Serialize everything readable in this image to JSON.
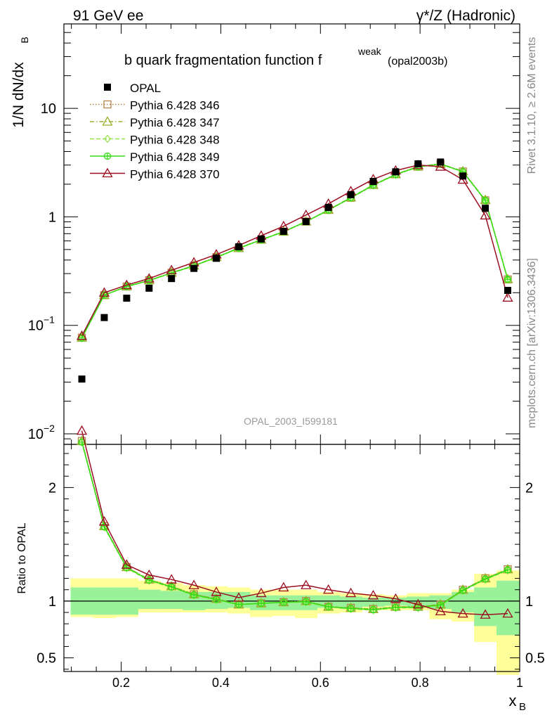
{
  "header": {
    "left": "91 GeV ee",
    "right": "γ*/Z (Hadronic)"
  },
  "side_labels": {
    "rivet": "Rivet 3.1.10, ≥ 2.6M events",
    "mcplots": "mcplots.cern.ch [arXiv:1306.3436]"
  },
  "chart_data": {
    "type": "scatter",
    "title_main": "b quark fragmentation function f",
    "title_sup": "weak",
    "title_sub": "(opal2003b)",
    "watermark": "OPAL_2003_I599181",
    "ylabel_main": "1/N dN/dx",
    "ylabel_sub": "B",
    "xlabel_main": "x",
    "xlabel_sub": "B",
    "ratio_ylabel": "Ratio to OPAL",
    "x_range": [
      0.085,
      1.0
    ],
    "y_range": [
      0.008,
      60
    ],
    "y_scale": "log",
    "ratio_range": [
      0.38,
      2.38
    ],
    "x_ticks": [
      {
        "v": 0.2,
        "label": "0.2"
      },
      {
        "v": 0.4,
        "label": "0.4"
      },
      {
        "v": 0.6,
        "label": "0.6"
      },
      {
        "v": 0.8,
        "label": "0.8"
      },
      {
        "v": 1.0,
        "label": "1"
      }
    ],
    "y_ticks": [
      {
        "v": 0.01,
        "base": "10",
        "exp": "−2"
      },
      {
        "v": 0.1,
        "base": "10",
        "exp": "−1"
      },
      {
        "v": 1,
        "base": "1",
        "exp": ""
      },
      {
        "v": 10,
        "base": "10",
        "exp": ""
      }
    ],
    "ratio_ticks": [
      {
        "v": 0.5,
        "label": "0.5"
      },
      {
        "v": 1,
        "label": "1"
      },
      {
        "v": 2,
        "label": "2"
      }
    ],
    "legend_position": "top-left",
    "x": [
      0.121,
      0.166,
      0.211,
      0.256,
      0.301,
      0.346,
      0.391,
      0.436,
      0.481,
      0.526,
      0.571,
      0.616,
      0.661,
      0.706,
      0.751,
      0.796,
      0.841,
      0.886,
      0.931,
      0.976
    ],
    "data": {
      "name": "OPAL",
      "values": [
        0.032,
        0.118,
        0.178,
        0.22,
        0.27,
        0.335,
        0.415,
        0.53,
        0.625,
        0.735,
        0.905,
        1.22,
        1.6,
        2.12,
        2.6,
        3.08,
        3.2,
        2.38,
        1.2,
        0.21
      ],
      "band_inner_lo": [
        0.88,
        0.88,
        0.88,
        0.93,
        0.93,
        0.92,
        0.93,
        0.94,
        0.92,
        0.92,
        0.92,
        0.94,
        0.93,
        0.95,
        0.96,
        0.95,
        0.93,
        0.9,
        0.78,
        0.7
      ],
      "band_inner_hi": [
        1.12,
        1.12,
        1.12,
        1.1,
        1.09,
        1.08,
        1.08,
        1.08,
        1.05,
        1.05,
        1.05,
        1.05,
        1.04,
        1.03,
        1.03,
        1.04,
        1.05,
        1.08,
        1.12,
        1.18
      ],
      "band_outer_lo": [
        0.86,
        0.85,
        0.86,
        0.9,
        0.9,
        0.9,
        0.9,
        0.89,
        0.86,
        0.87,
        0.85,
        0.89,
        0.9,
        0.92,
        0.92,
        0.92,
        0.84,
        0.82,
        0.64,
        0.35
      ],
      "band_outer_hi": [
        1.2,
        1.2,
        1.2,
        1.18,
        1.16,
        1.14,
        1.13,
        1.12,
        1.1,
        1.1,
        1.1,
        1.08,
        1.07,
        1.06,
        1.05,
        1.07,
        1.07,
        1.1,
        1.24,
        1.27
      ]
    },
    "series": [
      {
        "name": "Pythia 6.428 346",
        "color": "#b5854a",
        "dash": "1.5,2.5",
        "marker": "square-open",
        "values": [
          0.077,
          0.19,
          0.228,
          0.26,
          0.305,
          0.355,
          0.425,
          0.515,
          0.615,
          0.73,
          0.905,
          1.16,
          1.5,
          1.97,
          2.47,
          2.9,
          3.08,
          2.62,
          1.42,
          0.265
        ],
        "ratio": [
          2.41,
          1.66,
          1.3,
          1.19,
          1.13,
          1.06,
          1.02,
          0.97,
          0.98,
          0.99,
          1.0,
          0.95,
          0.94,
          0.93,
          0.95,
          0.95,
          0.97,
          1.1,
          1.2,
          1.28
        ]
      },
      {
        "name": "Pythia 6.428 347",
        "color": "#9ab12f",
        "dash": "6,3,1.5,3",
        "marker": "triangle-open",
        "values": [
          0.077,
          0.19,
          0.229,
          0.26,
          0.306,
          0.356,
          0.426,
          0.516,
          0.616,
          0.731,
          0.906,
          1.16,
          1.51,
          1.97,
          2.47,
          2.91,
          3.09,
          2.63,
          1.43,
          0.266
        ],
        "ratio": [
          2.41,
          1.66,
          1.3,
          1.19,
          1.13,
          1.06,
          1.02,
          0.97,
          0.98,
          0.99,
          1.0,
          0.95,
          0.94,
          0.93,
          0.95,
          0.95,
          0.97,
          1.1,
          1.2,
          1.28
        ]
      },
      {
        "name": "Pythia 6.428 348",
        "color": "#99e34f",
        "dash": "6,3",
        "marker": "diamond-open",
        "values": [
          0.076,
          0.189,
          0.227,
          0.258,
          0.303,
          0.352,
          0.422,
          0.512,
          0.612,
          0.727,
          0.9,
          1.15,
          1.49,
          1.95,
          2.44,
          2.88,
          3.05,
          2.6,
          1.41,
          0.264
        ],
        "ratio": [
          2.4,
          1.65,
          1.29,
          1.18,
          1.12,
          1.05,
          1.01,
          0.97,
          0.98,
          0.99,
          0.99,
          0.95,
          0.93,
          0.92,
          0.94,
          0.94,
          0.96,
          1.09,
          1.19,
          1.27
        ]
      },
      {
        "name": "Pythia 6.428 349",
        "color": "#33dd11",
        "dash": "",
        "marker": "circle-cross",
        "values": [
          0.0765,
          0.19,
          0.228,
          0.259,
          0.304,
          0.354,
          0.424,
          0.514,
          0.614,
          0.729,
          0.903,
          1.155,
          1.5,
          1.96,
          2.455,
          2.89,
          3.07,
          2.61,
          1.42,
          0.265
        ],
        "ratio": [
          2.4,
          1.655,
          1.295,
          1.185,
          1.125,
          1.055,
          1.015,
          0.97,
          0.98,
          0.99,
          0.995,
          0.95,
          0.935,
          0.925,
          0.945,
          0.945,
          0.965,
          1.095,
          1.195,
          1.275
        ]
      },
      {
        "name": "Pythia 6.428 370",
        "color": "#9b0f22",
        "dash": "",
        "marker": "triangle-open",
        "values": [
          0.08,
          0.2,
          0.235,
          0.27,
          0.322,
          0.38,
          0.45,
          0.545,
          0.67,
          0.82,
          1.04,
          1.32,
          1.72,
          2.22,
          2.67,
          3.0,
          2.9,
          2.2,
          1.03,
          0.18
        ],
        "ratio": [
          2.5,
          1.7,
          1.32,
          1.23,
          1.19,
          1.14,
          1.08,
          1.03,
          1.07,
          1.12,
          1.14,
          1.1,
          1.07,
          1.05,
          1.02,
          0.97,
          0.91,
          0.89,
          0.88,
          0.89
        ]
      }
    ]
  }
}
